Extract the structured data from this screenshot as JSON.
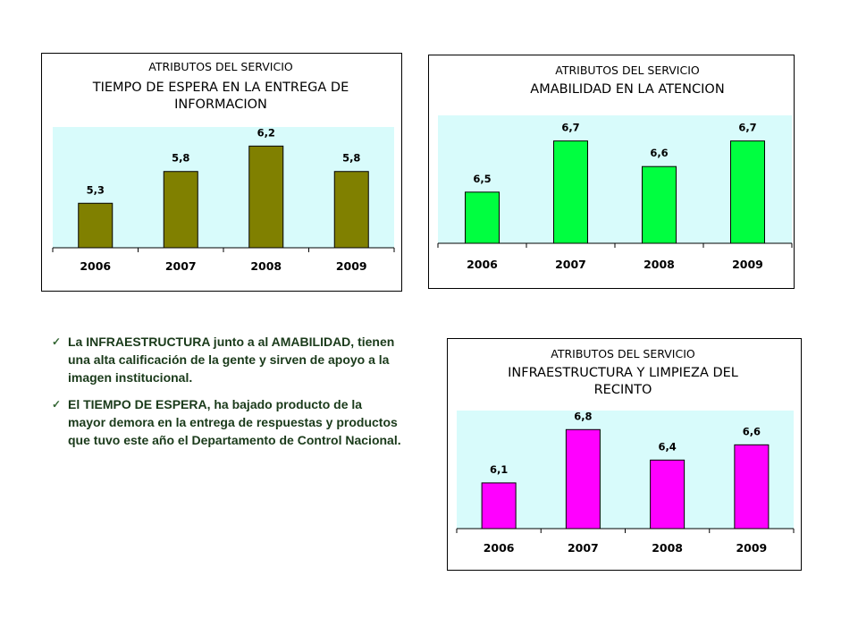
{
  "chart_data": [
    {
      "type": "bar",
      "supertitle": "ATRIBUTOS DEL SERVICIO",
      "title": [
        "TIEMPO DE ESPERA EN LA ENTREGA DE",
        "INFORMACION"
      ],
      "categories": [
        "2006",
        "2007",
        "2008",
        "2009"
      ],
      "values": [
        5.3,
        5.8,
        6.2,
        5.8
      ],
      "value_labels": [
        "5,3",
        "5,8",
        "6,2",
        "5,8"
      ],
      "ylim": [
        4.6,
        6.5
      ],
      "bar_color": "#808000",
      "plot_bg_color": "#d8fbfb",
      "grid": false
    },
    {
      "type": "bar",
      "supertitle": "ATRIBUTOS DEL SERVICIO",
      "title": [
        "AMABILIDAD EN LA ATENCION"
      ],
      "categories": [
        "2006",
        "2007",
        "2008",
        "2009"
      ],
      "values": [
        6.5,
        6.7,
        6.6,
        6.7
      ],
      "value_labels": [
        "6,5",
        "6,7",
        "6,6",
        "6,7"
      ],
      "ylim": [
        6.3,
        6.8
      ],
      "bar_color": "#00ff40",
      "plot_bg_color": "#d8fbfb",
      "grid": false
    },
    {
      "type": "bar",
      "supertitle": "ATRIBUTOS DEL SERVICIO",
      "title": [
        "INFRAESTRUCTURA Y LIMPIEZA DEL",
        "RECINTO"
      ],
      "categories": [
        "2006",
        "2007",
        "2008",
        "2009"
      ],
      "values": [
        6.1,
        6.8,
        6.4,
        6.6
      ],
      "value_labels": [
        "6,1",
        "6,8",
        "6,4",
        "6,6"
      ],
      "ylim": [
        5.5,
        7.05
      ],
      "bar_color": "#ff00ff",
      "plot_bg_color": "#d8fbfb",
      "grid": false
    }
  ],
  "notes": [
    "La INFRAESTRUCTURA junto a al AMABILIDAD, tienen una alta calificación de la gente y sirven de apoyo a la imagen institucional.",
    "El TIEMPO DE ESPERA, ha bajado producto de la mayor demora en la entrega de respuestas y productos que tuvo este año el Departamento de Control Nacional."
  ],
  "icons": {
    "bullet": "check-icon"
  }
}
